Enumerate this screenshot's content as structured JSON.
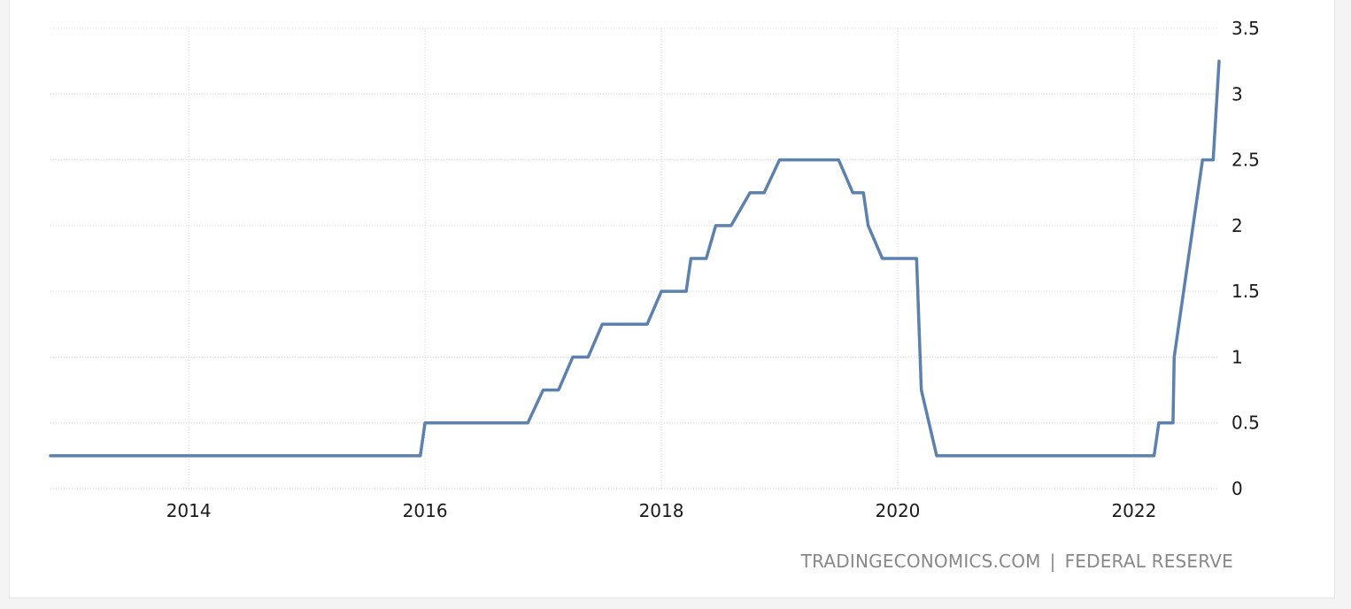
{
  "source": {
    "site": "TRADINGECONOMICS.COM",
    "separator": "|",
    "provider": "FEDERAL RESERVE"
  },
  "chart_data": {
    "type": "line",
    "title": "",
    "xlabel": "",
    "ylabel": "",
    "xlim": [
      2012.83,
      2022.72
    ],
    "ylim": [
      0,
      3.5
    ],
    "grid": true,
    "y_axis_side": "right",
    "x_ticks": [
      2014,
      2016,
      2018,
      2020,
      2022
    ],
    "x_tick_labels": [
      "2014",
      "2016",
      "2018",
      "2020",
      "2022"
    ],
    "y_ticks": [
      0,
      0.5,
      1,
      1.5,
      2,
      2.5,
      3,
      3.5
    ],
    "y_tick_labels": [
      "0",
      "0.5",
      "1",
      "1.5",
      "2",
      "2.5",
      "3",
      "3.5"
    ],
    "colors": {
      "line": "#5d81ad",
      "grid": "#d8d8d8",
      "tick_text": "#1a1a1a",
      "source_text": "#888888"
    },
    "series": [
      {
        "points": [
          [
            2012.83,
            0.25
          ],
          [
            2015.96,
            0.25
          ],
          [
            2016.0,
            0.5
          ],
          [
            2016.87,
            0.5
          ],
          [
            2017.0,
            0.75
          ],
          [
            2017.13,
            0.75
          ],
          [
            2017.25,
            1.0
          ],
          [
            2017.38,
            1.0
          ],
          [
            2017.5,
            1.25
          ],
          [
            2017.88,
            1.25
          ],
          [
            2018.0,
            1.5
          ],
          [
            2018.21,
            1.5
          ],
          [
            2018.25,
            1.75
          ],
          [
            2018.38,
            1.75
          ],
          [
            2018.46,
            2.0
          ],
          [
            2018.59,
            2.0
          ],
          [
            2018.75,
            2.25
          ],
          [
            2018.87,
            2.25
          ],
          [
            2019.0,
            2.5
          ],
          [
            2019.5,
            2.5
          ],
          [
            2019.62,
            2.25
          ],
          [
            2019.71,
            2.25
          ],
          [
            2019.75,
            2.0
          ],
          [
            2019.87,
            1.75
          ],
          [
            2020.16,
            1.75
          ],
          [
            2020.2,
            0.75
          ],
          [
            2020.33,
            0.25
          ],
          [
            2022.17,
            0.25
          ],
          [
            2022.21,
            0.5
          ],
          [
            2022.33,
            0.5
          ],
          [
            2022.34,
            1.0
          ],
          [
            2022.58,
            2.5
          ],
          [
            2022.67,
            2.5
          ],
          [
            2022.72,
            3.25
          ]
        ]
      }
    ]
  }
}
